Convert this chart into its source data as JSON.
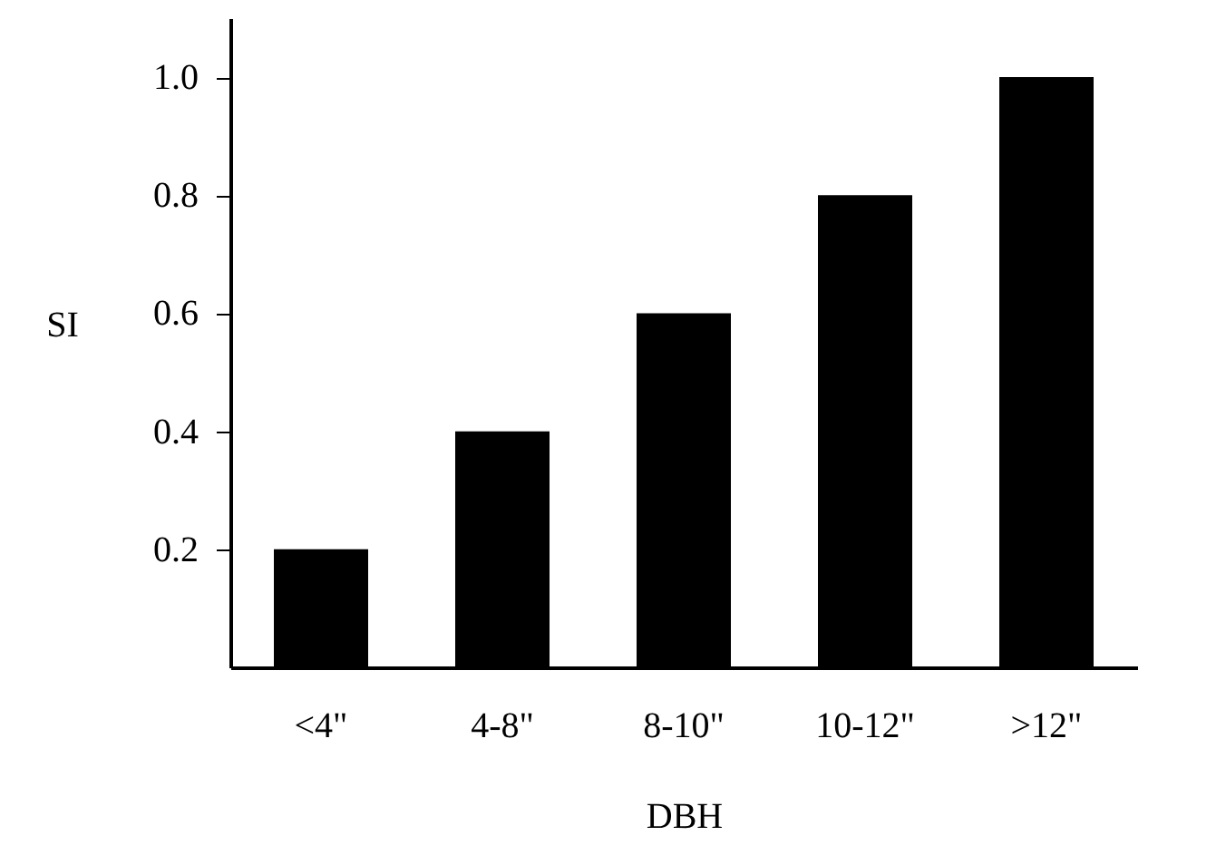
{
  "chart_data": {
    "type": "bar",
    "xlabel": "DBH",
    "ylabel": "SI",
    "categories": [
      "<4\"",
      "4-8\"",
      "8-10\"",
      "10-12\"",
      ">12\""
    ],
    "values": [
      0.2,
      0.4,
      0.6,
      0.8,
      1.0
    ],
    "color": "#000000",
    "ylim": [
      0,
      1.1
    ],
    "yticks": [
      {
        "value": 0.2,
        "label": "0.2"
      },
      {
        "value": 0.4,
        "label": "0.4"
      },
      {
        "value": 0.6,
        "label": "0.6"
      },
      {
        "value": 0.8,
        "label": "0.8"
      },
      {
        "value": 1.0,
        "label": "1.0"
      }
    ],
    "grid": false
  }
}
